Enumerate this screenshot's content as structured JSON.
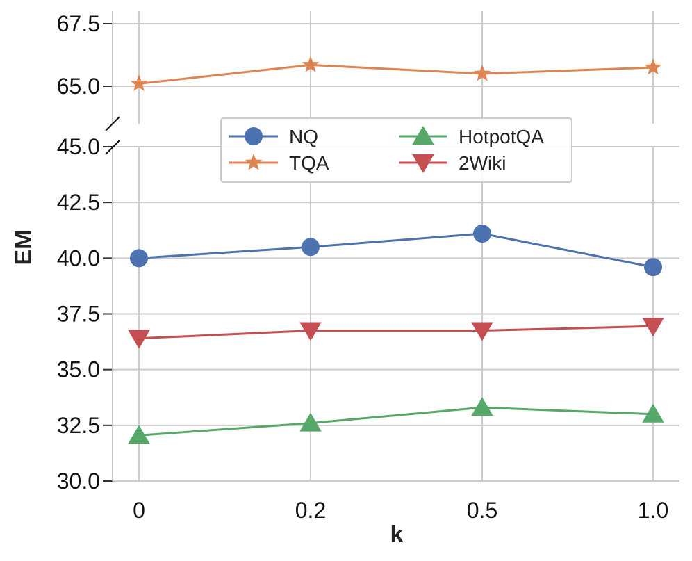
{
  "chart_data": {
    "type": "line",
    "xlabel": "k",
    "ylabel": "EM",
    "categories": [
      "0",
      "0.2",
      "0.5",
      "1.0"
    ],
    "axis_break": true,
    "upper_panel": {
      "ylim": [
        63.5,
        68.0
      ],
      "yticks": [
        "65.0",
        "67.5"
      ],
      "ytick_values": [
        65.0,
        67.5
      ]
    },
    "lower_panel": {
      "ylim": [
        30.0,
        45.0
      ],
      "yticks": [
        "30.0",
        "32.5",
        "35.0",
        "37.5",
        "40.0",
        "42.5",
        "45.0"
      ],
      "ytick_values": [
        30.0,
        32.5,
        35.0,
        37.5,
        40.0,
        42.5,
        45.0
      ]
    },
    "grid": true,
    "legend_position": "top-center",
    "series": [
      {
        "name": "NQ",
        "panel": "lower",
        "marker": "circle",
        "color": "#4C72B0",
        "values": [
          40.0,
          40.5,
          41.1,
          39.6
        ]
      },
      {
        "name": "TQA",
        "panel": "upper",
        "marker": "star",
        "color": "#DD8452",
        "values": [
          65.1,
          65.85,
          65.5,
          65.75
        ]
      },
      {
        "name": "HotpotQA",
        "panel": "lower",
        "marker": "triangle-up",
        "color": "#55A868",
        "values": [
          32.05,
          32.6,
          33.3,
          33.0
        ]
      },
      {
        "name": "2Wiki",
        "panel": "lower",
        "marker": "triangle-down",
        "color": "#C44E52",
        "values": [
          36.4,
          36.75,
          36.75,
          36.95
        ]
      }
    ]
  }
}
